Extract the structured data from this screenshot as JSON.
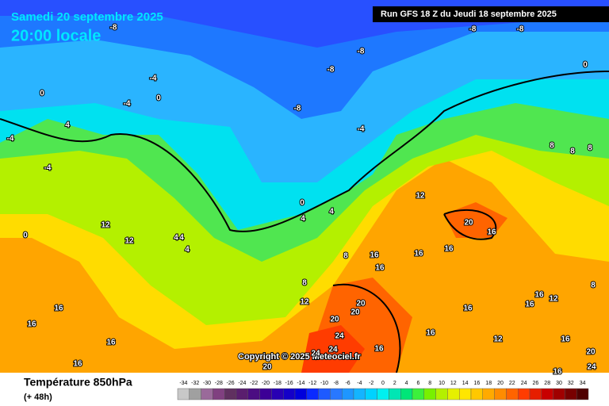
{
  "header": {
    "date": "Samedi 20 septembre 2025",
    "time": "20:00 locale",
    "run": "Run GFS 18 Z du Jeudi 18 septembre 2025"
  },
  "map": {
    "copyright": "Copyright © 2025 Meteociel.fr",
    "contour_labels": [
      -8,
      -8,
      -8,
      -8,
      -8,
      -8,
      -4,
      -4,
      -4,
      -4,
      -4,
      0,
      0,
      0,
      0,
      0,
      4,
      4,
      4,
      4,
      4,
      4,
      12,
      12,
      12,
      8,
      8,
      8,
      8,
      8,
      12,
      16,
      16,
      16,
      16,
      20,
      16,
      20,
      20,
      20,
      16,
      16,
      16,
      16,
      16,
      16,
      24,
      24,
      24,
      20,
      16,
      16,
      12,
      12,
      16,
      20,
      24,
      16,
      8,
      16
    ]
  },
  "legend": {
    "title": "Température 850hPa",
    "lead": "(+ 48h)",
    "scale": [
      -34,
      -32,
      -30,
      -28,
      -26,
      -24,
      -22,
      -20,
      -18,
      -16,
      -14,
      -12,
      -10,
      -8,
      -6,
      -4,
      -2,
      0,
      2,
      4,
      6,
      8,
      10,
      12,
      14,
      16,
      18,
      20,
      22,
      24,
      26,
      28,
      30,
      32,
      34
    ],
    "colors": [
      "#c8c8c8",
      "#a0a0a0",
      "#9a6a9a",
      "#804080",
      "#603060",
      "#5a1e6e",
      "#4b0d82",
      "#3c0096",
      "#2800b4",
      "#1400c8",
      "#0000dc",
      "#0a2aff",
      "#1e5aff",
      "#2878ff",
      "#1e96ff",
      "#14b4ff",
      "#00d2ff",
      "#00f0f0",
      "#00e6b4",
      "#00e678",
      "#3cf03c",
      "#78f000",
      "#b4f000",
      "#e6f000",
      "#ffe600",
      "#ffc800",
      "#ffaa00",
      "#ff8c00",
      "#ff6400",
      "#ff3c00",
      "#e61e00",
      "#c80000",
      "#a00000",
      "#780000",
      "#500000"
    ]
  }
}
